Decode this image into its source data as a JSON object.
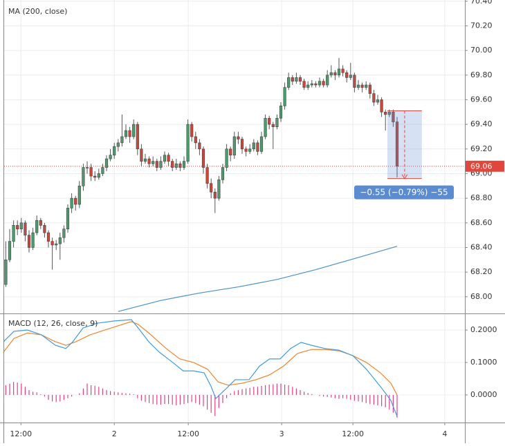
{
  "chart_data": [
    {
      "type": "candlestick",
      "title": "MA (200, close)",
      "xlim": [
        -1.5,
        118.5
      ],
      "ylim": [
        67.87,
        70.41
      ],
      "yticks": [
        {
          "value": 70.4,
          "label": "70.40"
        },
        {
          "value": 70.2,
          "label": "70.20"
        },
        {
          "value": 70.0,
          "label": "70.00"
        },
        {
          "value": 69.8,
          "label": "69.80"
        },
        {
          "value": 69.6,
          "label": "69.60"
        },
        {
          "value": 69.4,
          "label": "69.40"
        },
        {
          "value": 69.2,
          "label": "69.20"
        },
        {
          "value": 69.0,
          "label": "69.00"
        },
        {
          "value": 68.8,
          "label": "68.80"
        },
        {
          "value": 68.6,
          "label": "68.60"
        },
        {
          "value": 68.4,
          "label": "68.40"
        },
        {
          "value": 68.2,
          "label": "68.20"
        },
        {
          "value": 68.0,
          "label": "68.00"
        }
      ],
      "grid": true,
      "up_color": "#4f9a6c",
      "down_color": "#c9473c",
      "ohlc": [
        [
          68.1,
          68.45,
          68.08,
          68.3
        ],
        [
          68.3,
          68.55,
          68.28,
          68.45
        ],
        [
          68.45,
          68.62,
          68.4,
          68.58
        ],
        [
          68.58,
          68.62,
          68.5,
          68.55
        ],
        [
          68.55,
          68.64,
          68.52,
          68.6
        ],
        [
          68.6,
          68.62,
          68.45,
          68.5
        ],
        [
          68.5,
          68.54,
          68.36,
          68.4
        ],
        [
          68.4,
          68.56,
          68.38,
          68.52
        ],
        [
          68.52,
          68.66,
          68.5,
          68.62
        ],
        [
          68.62,
          68.64,
          68.55,
          68.58
        ],
        [
          68.58,
          68.6,
          68.48,
          68.52
        ],
        [
          68.52,
          68.54,
          68.4,
          68.45
        ],
        [
          68.45,
          68.48,
          68.22,
          68.42
        ],
        [
          68.42,
          68.46,
          68.38,
          68.43
        ],
        [
          68.43,
          68.52,
          68.3,
          68.48
        ],
        [
          68.48,
          68.58,
          68.44,
          68.55
        ],
        [
          68.55,
          68.75,
          68.52,
          68.72
        ],
        [
          68.72,
          68.84,
          68.68,
          68.8
        ],
        [
          68.8,
          68.82,
          68.7,
          68.75
        ],
        [
          68.75,
          68.94,
          68.72,
          68.9
        ],
        [
          68.9,
          69.08,
          68.86,
          69.05
        ],
        [
          69.05,
          69.1,
          69.0,
          69.05
        ],
        [
          69.05,
          69.08,
          68.94,
          68.98
        ],
        [
          68.98,
          69.02,
          68.94,
          68.97
        ],
        [
          68.97,
          69.04,
          68.95,
          69.0
        ],
        [
          69.0,
          69.08,
          68.98,
          69.05
        ],
        [
          69.05,
          69.15,
          69.02,
          69.12
        ],
        [
          69.12,
          69.2,
          69.1,
          69.15
        ],
        [
          69.15,
          69.25,
          69.12,
          69.22
        ],
        [
          69.22,
          69.28,
          69.18,
          69.25
        ],
        [
          69.25,
          69.48,
          69.22,
          69.3
        ],
        [
          69.3,
          69.4,
          69.28,
          69.35
        ],
        [
          69.35,
          69.38,
          69.25,
          69.3
        ],
        [
          69.3,
          69.44,
          69.28,
          69.4
        ],
        [
          69.4,
          69.42,
          69.15,
          69.2
        ],
        [
          69.2,
          69.24,
          69.06,
          69.1
        ],
        [
          69.1,
          69.16,
          69.08,
          69.12
        ],
        [
          69.12,
          69.14,
          69.05,
          69.08
        ],
        [
          69.08,
          69.14,
          69.06,
          69.1
        ],
        [
          69.1,
          69.12,
          69.02,
          69.05
        ],
        [
          69.05,
          69.14,
          69.03,
          69.1
        ],
        [
          69.1,
          69.18,
          69.08,
          69.15
        ],
        [
          69.15,
          69.17,
          69.06,
          69.1
        ],
        [
          69.1,
          69.12,
          69.02,
          69.05
        ],
        [
          69.05,
          69.12,
          69.03,
          69.08
        ],
        [
          69.08,
          69.1,
          69.02,
          69.05
        ],
        [
          69.05,
          69.14,
          69.03,
          69.1
        ],
        [
          69.1,
          69.44,
          69.08,
          69.4
        ],
        [
          69.4,
          69.42,
          69.26,
          69.3
        ],
        [
          69.3,
          69.34,
          69.2,
          69.25
        ],
        [
          69.25,
          69.28,
          69.15,
          69.2
        ],
        [
          69.2,
          69.22,
          69.0,
          69.05
        ],
        [
          69.05,
          69.08,
          68.88,
          68.92
        ],
        [
          68.92,
          68.96,
          68.8,
          68.85
        ],
        [
          68.85,
          68.88,
          68.68,
          68.8
        ],
        [
          68.8,
          68.98,
          68.78,
          68.95
        ],
        [
          68.95,
          69.08,
          68.92,
          69.05
        ],
        [
          69.05,
          69.24,
          69.02,
          69.2
        ],
        [
          69.2,
          69.22,
          69.1,
          69.15
        ],
        [
          69.15,
          69.34,
          69.12,
          69.3
        ],
        [
          69.3,
          69.34,
          69.24,
          69.28
        ],
        [
          69.28,
          69.3,
          69.16,
          69.2
        ],
        [
          69.2,
          69.22,
          69.14,
          69.18
        ],
        [
          69.18,
          69.24,
          69.16,
          69.2
        ],
        [
          69.2,
          69.28,
          69.18,
          69.25
        ],
        [
          69.25,
          69.27,
          69.15,
          69.18
        ],
        [
          69.18,
          69.34,
          69.16,
          69.3
        ],
        [
          69.3,
          69.48,
          69.28,
          69.45
        ],
        [
          69.45,
          69.47,
          69.36,
          69.4
        ],
        [
          69.4,
          69.42,
          69.2,
          69.38
        ],
        [
          69.38,
          69.48,
          69.36,
          69.45
        ],
        [
          69.45,
          69.58,
          69.42,
          69.55
        ],
        [
          69.55,
          69.74,
          69.52,
          69.7
        ],
        [
          69.7,
          69.82,
          69.68,
          69.78
        ],
        [
          69.78,
          69.8,
          69.72,
          69.75
        ],
        [
          69.75,
          69.82,
          69.73,
          69.78
        ],
        [
          69.78,
          69.8,
          69.72,
          69.75
        ],
        [
          69.75,
          69.77,
          69.68,
          69.7
        ],
        [
          69.7,
          69.75,
          69.68,
          69.72
        ],
        [
          69.72,
          69.76,
          69.7,
          69.73
        ],
        [
          69.73,
          69.75,
          69.7,
          69.72
        ],
        [
          69.72,
          69.78,
          69.7,
          69.75
        ],
        [
          69.75,
          69.77,
          69.7,
          69.72
        ],
        [
          69.72,
          69.84,
          69.7,
          69.8
        ],
        [
          69.8,
          69.88,
          69.78,
          69.82
        ],
        [
          69.82,
          69.84,
          69.76,
          69.8
        ],
        [
          69.8,
          69.94,
          69.78,
          69.85
        ],
        [
          69.85,
          69.88,
          69.79,
          69.82
        ],
        [
          69.82,
          69.84,
          69.74,
          69.78
        ],
        [
          69.78,
          69.9,
          69.76,
          69.8
        ],
        [
          69.8,
          69.82,
          69.66,
          69.7
        ],
        [
          69.7,
          69.76,
          69.68,
          69.72
        ],
        [
          69.72,
          69.74,
          69.66,
          69.7
        ],
        [
          69.7,
          69.75,
          69.68,
          69.72
        ],
        [
          69.72,
          69.74,
          69.61,
          69.65
        ],
        [
          69.65,
          69.68,
          69.55,
          69.58
        ],
        [
          69.58,
          69.64,
          69.56,
          69.6
        ],
        [
          69.6,
          69.62,
          69.46,
          69.5
        ],
        [
          69.5,
          69.52,
          69.35,
          69.48
        ],
        [
          69.48,
          69.52,
          69.46,
          69.5
        ],
        [
          69.5,
          69.52,
          69.38,
          69.42
        ],
        [
          69.42,
          69.46,
          68.97,
          69.06
        ]
      ],
      "ma": {
        "color": "#4a90c8",
        "x": [
          29,
          40,
          50,
          60,
          70,
          80,
          90,
          101
        ],
        "values": [
          67.88,
          67.97,
          68.03,
          68.08,
          68.14,
          68.22,
          68.31,
          68.41
        ]
      },
      "last_price": 69.06,
      "last_price_color": "#e0463c",
      "measure": {
        "x": [
          98.5,
          107.4
        ],
        "y": [
          69.51,
          68.96
        ],
        "label": "−0.55 (−0.79%) −55",
        "color": "#5b8bd0"
      }
    },
    {
      "type": "macd",
      "title": "MACD (12, 26, close, 9)",
      "xlim": [
        -1.5,
        118.5
      ],
      "ylim": [
        -0.085,
        0.249
      ],
      "yticks": [
        {
          "value": 0.2,
          "label": "0.2000"
        },
        {
          "value": 0.1,
          "label": "0.1000"
        },
        {
          "value": 0,
          "label": "0.0000"
        }
      ],
      "xticks": [
        {
          "value": 3.9,
          "label": "12:00"
        },
        {
          "value": 28,
          "label": "2"
        },
        {
          "value": 47.1,
          "label": "12:00"
        },
        {
          "value": 71.2,
          "label": "3"
        },
        {
          "value": 89.6,
          "label": "12:00"
        },
        {
          "value": 113.3,
          "label": "4"
        }
      ],
      "grid": true,
      "macd": {
        "color": "#3d9be0",
        "x": [
          -0.6,
          2.1,
          5.6,
          9.2,
          12.8,
          15.5,
          17.3,
          19.9,
          23.5,
          28,
          32.4,
          34.2,
          36.9,
          39.6,
          43.1,
          45.8,
          48.5,
          51.2,
          53,
          54.2,
          56.5,
          59.2,
          62.8,
          65.5,
          68.1,
          70.8,
          73.5,
          76.2,
          78.9,
          82.4,
          86,
          89.6,
          93.1,
          96.7,
          99.4,
          101
        ],
        "values": [
          0.164,
          0.196,
          0.2,
          0.185,
          0.153,
          0.143,
          0.164,
          0.206,
          0.221,
          0.228,
          0.232,
          0.206,
          0.164,
          0.132,
          0.1,
          0.074,
          0.074,
          0.068,
          0.026,
          -0.011,
          0.015,
          0.047,
          0.047,
          0.089,
          0.111,
          0.111,
          0.143,
          0.162,
          0.153,
          0.143,
          0.138,
          0.121,
          0.079,
          0.026,
          -0.017,
          -0.066
        ]
      },
      "signal": {
        "color": "#f0862e",
        "x": [
          -0.6,
          2.1,
          5.6,
          9.2,
          12.8,
          15.5,
          18.1,
          21.7,
          27.1,
          32.4,
          34.2,
          36.9,
          41.4,
          44.9,
          48.5,
          52.1,
          54.8,
          57.4,
          61,
          64.6,
          68.1,
          71.7,
          75.3,
          78.9,
          82.4,
          86,
          89.6,
          93.1,
          96.7,
          99.4,
          101
        ],
        "values": [
          0.132,
          0.174,
          0.191,
          0.185,
          0.164,
          0.153,
          0.164,
          0.185,
          0.206,
          0.226,
          0.217,
          0.191,
          0.143,
          0.111,
          0.1,
          0.079,
          0.04,
          0.03,
          0.036,
          0.047,
          0.062,
          0.089,
          0.128,
          0.14,
          0.14,
          0.136,
          0.121,
          0.1,
          0.068,
          0.036,
          0.0
        ]
      },
      "histogram": {
        "color": "#e0408a",
        "values": [
          0.03,
          0.035,
          0.04,
          0.038,
          0.035,
          0.025,
          0.015,
          0.01,
          0.008,
          0.002,
          -0.005,
          -0.015,
          -0.02,
          -0.022,
          -0.02,
          -0.015,
          -0.01,
          -0.005,
          0.0,
          0.005,
          0.02,
          0.035,
          0.03,
          0.028,
          0.025,
          0.02,
          0.015,
          0.012,
          0.01,
          0.008,
          0.006,
          0.005,
          0.004,
          0.002,
          -0.01,
          -0.018,
          -0.022,
          -0.025,
          -0.028,
          -0.03,
          -0.03,
          -0.028,
          -0.028,
          -0.03,
          -0.032,
          -0.03,
          -0.028,
          -0.025,
          -0.022,
          -0.025,
          -0.03,
          -0.035,
          -0.045,
          -0.055,
          -0.065,
          -0.04,
          -0.025,
          -0.01,
          0.005,
          0.012,
          0.015,
          0.018,
          0.02,
          0.022,
          0.025,
          0.025,
          0.028,
          0.03,
          0.032,
          0.033,
          0.035,
          0.035,
          0.032,
          0.03,
          0.025,
          0.02,
          0.015,
          0.01,
          0.006,
          0.003,
          0.0,
          -0.003,
          -0.005,
          -0.006,
          -0.008,
          -0.01,
          -0.012,
          -0.01,
          -0.012,
          -0.015,
          -0.018,
          -0.02,
          -0.022,
          -0.025,
          -0.028,
          -0.03,
          -0.032,
          -0.035,
          -0.038,
          -0.045,
          -0.055,
          -0.07
        ]
      }
    }
  ]
}
